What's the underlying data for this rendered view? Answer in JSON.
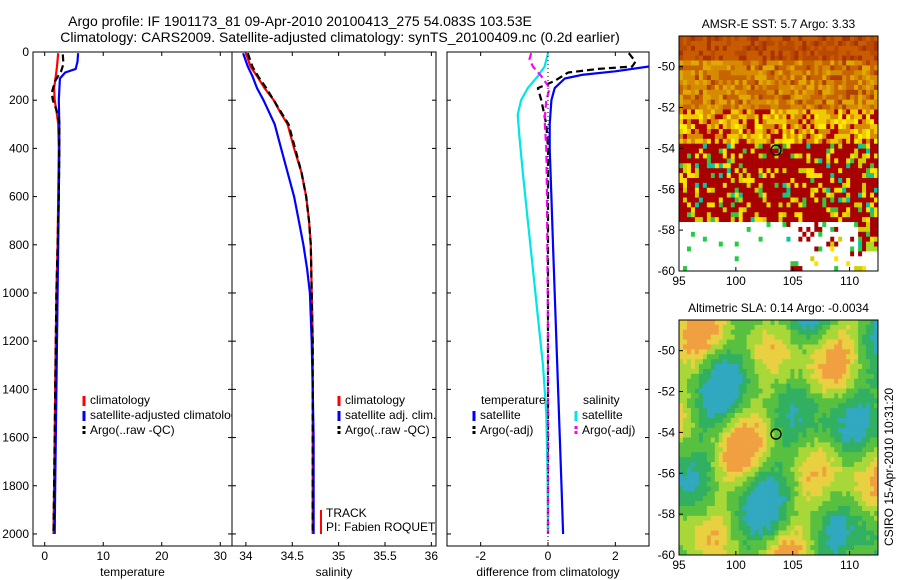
{
  "title_line1": "Argo profile: IF 1901173_81 09-Apr-2010 20100413_275 54.083S 103.53E",
  "title_line2": "Climatology: CARS2009. Satellite-adjusted climatology: synTS_20100409.nc (0.2d earlier)",
  "stamp": "CSIRO 15-Apr-2010 10:31:20",
  "colors": {
    "red": "#ff0000",
    "blue": "#0000ff",
    "black": "#000000",
    "cyan": "#00e5e5",
    "magenta": "#ff00ff"
  },
  "chart_data": [
    {
      "type": "line",
      "id": "temperature",
      "xlabel": "temperature",
      "xlim": [
        -2,
        32
      ],
      "ylim": [
        2050,
        0
      ],
      "xticks": [
        0,
        10,
        20,
        30
      ],
      "yticks": [
        0,
        200,
        400,
        600,
        800,
        1000,
        1200,
        1400,
        1600,
        1800,
        2000
      ],
      "legend": [
        "climatology",
        "satellite-adjusted climatology",
        "Argo(..raw -QC)"
      ],
      "series": [
        {
          "name": "climatology",
          "color": "red",
          "dash": false,
          "points": [
            [
              2.3,
              5
            ],
            [
              2.1,
              60
            ],
            [
              1.9,
              100
            ],
            [
              1.6,
              150
            ],
            [
              1.7,
              200
            ],
            [
              2.1,
              260
            ],
            [
              2.3,
              300
            ],
            [
              2.4,
              400
            ],
            [
              2.3,
              600
            ],
            [
              2.2,
              800
            ],
            [
              2.0,
              1000
            ],
            [
              1.9,
              1200
            ],
            [
              1.8,
              1400
            ],
            [
              1.7,
              1600
            ],
            [
              1.6,
              1800
            ],
            [
              1.5,
              2000
            ]
          ]
        },
        {
          "name": "satellite-adjusted climatology",
          "color": "blue",
          "dash": false,
          "points": [
            [
              5.7,
              5
            ],
            [
              5.6,
              40
            ],
            [
              5.3,
              70
            ],
            [
              3.5,
              85
            ],
            [
              2.6,
              110
            ],
            [
              2.4,
              200
            ],
            [
              2.5,
              300
            ],
            [
              2.5,
              400
            ],
            [
              2.4,
              600
            ],
            [
              2.3,
              800
            ],
            [
              2.2,
              1000
            ],
            [
              2.1,
              1200
            ],
            [
              2.0,
              1400
            ],
            [
              1.9,
              1600
            ],
            [
              1.8,
              1800
            ],
            [
              1.7,
              2000
            ]
          ]
        },
        {
          "name": "Argo(..raw -QC)",
          "color": "black",
          "dash": true,
          "points": [
            [
              3.1,
              10
            ],
            [
              3.2,
              50
            ],
            [
              2.8,
              80
            ],
            [
              1.8,
              120
            ],
            [
              1.2,
              170
            ],
            [
              1.4,
              200
            ],
            [
              2.0,
              240
            ],
            [
              2.5,
              290
            ],
            [
              2.5,
              400
            ],
            [
              2.4,
              600
            ],
            [
              2.2,
              800
            ],
            [
              2.0,
              1000
            ],
            [
              1.9,
              1200
            ],
            [
              1.8,
              1400
            ],
            [
              1.7,
              1600
            ],
            [
              1.6,
              1800
            ],
            [
              1.5,
              2000
            ]
          ]
        }
      ]
    },
    {
      "type": "line",
      "id": "salinity",
      "xlabel": "salinity",
      "xlim": [
        33.85,
        36.05
      ],
      "ylim": [
        2050,
        0
      ],
      "xticks": [
        34,
        34.5,
        35,
        35.5,
        36
      ],
      "legend": [
        "climatology",
        "satellite adj. clim.",
        "Argo(..raw -QC)"
      ],
      "annotations": [
        "TRACK",
        "PI: Fabien ROQUET"
      ],
      "series": [
        {
          "name": "climatology",
          "color": "red",
          "dash": false,
          "points": [
            [
              34.0,
              5
            ],
            [
              34.05,
              60
            ],
            [
              34.12,
              100
            ],
            [
              34.2,
              150
            ],
            [
              34.3,
              200
            ],
            [
              34.37,
              250
            ],
            [
              34.45,
              300
            ],
            [
              34.52,
              400
            ],
            [
              34.6,
              500
            ],
            [
              34.65,
              600
            ],
            [
              34.68,
              700
            ],
            [
              34.7,
              800
            ],
            [
              34.71,
              1000
            ],
            [
              34.72,
              1200
            ],
            [
              34.72,
              1400
            ],
            [
              34.72,
              1600
            ],
            [
              34.72,
              1800
            ],
            [
              34.72,
              2000
            ]
          ]
        },
        {
          "name": "satellite adj. clim.",
          "color": "blue",
          "dash": false,
          "points": [
            [
              33.97,
              5
            ],
            [
              34.02,
              60
            ],
            [
              34.07,
              100
            ],
            [
              34.12,
              150
            ],
            [
              34.19,
              200
            ],
            [
              34.25,
              250
            ],
            [
              34.31,
              300
            ],
            [
              34.38,
              400
            ],
            [
              34.45,
              500
            ],
            [
              34.52,
              600
            ],
            [
              34.57,
              700
            ],
            [
              34.62,
              800
            ],
            [
              34.66,
              900
            ],
            [
              34.69,
              1000
            ],
            [
              34.71,
              1200
            ],
            [
              34.72,
              1400
            ],
            [
              34.73,
              1600
            ],
            [
              34.73,
              1800
            ],
            [
              34.73,
              2000
            ]
          ]
        },
        {
          "name": "Argo(..raw -QC)",
          "color": "black",
          "dash": true,
          "points": [
            [
              34.02,
              5
            ],
            [
              34.07,
              60
            ],
            [
              34.13,
              100
            ],
            [
              34.22,
              150
            ],
            [
              34.3,
              200
            ],
            [
              34.38,
              250
            ],
            [
              34.46,
              300
            ],
            [
              34.53,
              400
            ],
            [
              34.6,
              500
            ],
            [
              34.65,
              600
            ],
            [
              34.68,
              700
            ],
            [
              34.7,
              800
            ],
            [
              34.71,
              1000
            ],
            [
              34.72,
              1200
            ],
            [
              34.72,
              1400
            ],
            [
              34.72,
              1600
            ],
            [
              34.72,
              1800
            ],
            [
              34.72,
              2000
            ]
          ]
        }
      ]
    },
    {
      "type": "line",
      "id": "difference",
      "xlabel": "difference from climatology",
      "xlim": [
        -3,
        3
      ],
      "ylim": [
        2050,
        0
      ],
      "xticks": [
        -2,
        0,
        2
      ],
      "legend_temperature_title": "temperature",
      "legend_salinity_title": "salinity",
      "legend": [
        "satellite",
        "Argo(-adj)",
        "satellite",
        "Argo(-adj)"
      ],
      "series": [
        {
          "name": "temperature satellite",
          "color": "blue",
          "dash": false,
          "points": [
            [
              3.5,
              5
            ],
            [
              3.4,
              40
            ],
            [
              3.0,
              60
            ],
            [
              2.0,
              80
            ],
            [
              1.0,
              95
            ],
            [
              0.5,
              110
            ],
            [
              0.2,
              150
            ],
            [
              0.1,
              200
            ],
            [
              0.05,
              300
            ],
            [
              0.05,
              400
            ],
            [
              0.1,
              600
            ],
            [
              0.15,
              800
            ],
            [
              0.2,
              1000
            ],
            [
              0.25,
              1200
            ],
            [
              0.3,
              1400
            ],
            [
              0.35,
              1600
            ],
            [
              0.4,
              1800
            ],
            [
              0.45,
              2000
            ]
          ]
        },
        {
          "name": "temperature Argo(-adj)",
          "color": "black",
          "dash": true,
          "points": [
            [
              2.4,
              5
            ],
            [
              2.6,
              40
            ],
            [
              2.5,
              60
            ],
            [
              1.5,
              70
            ],
            [
              0.6,
              85
            ],
            [
              0.2,
              120
            ],
            [
              -0.3,
              150
            ],
            [
              -0.2,
              200
            ],
            [
              -0.05,
              300
            ],
            [
              0.0,
              400
            ],
            [
              0.0,
              600
            ],
            [
              0.0,
              800
            ],
            [
              0.0,
              1000
            ],
            [
              0.0,
              1200
            ],
            [
              0.0,
              1400
            ],
            [
              0.0,
              1600
            ],
            [
              0.0,
              1800
            ],
            [
              0.0,
              2000
            ]
          ]
        },
        {
          "name": "salinity satellite",
          "color": "cyan",
          "dash": false,
          "points": [
            [
              0.0,
              5
            ],
            [
              -0.1,
              60
            ],
            [
              -0.3,
              100
            ],
            [
              -0.6,
              150
            ],
            [
              -0.8,
              200
            ],
            [
              -0.9,
              260
            ],
            [
              -0.85,
              350
            ],
            [
              -0.75,
              500
            ],
            [
              -0.6,
              700
            ],
            [
              -0.45,
              900
            ],
            [
              -0.3,
              1100
            ],
            [
              -0.15,
              1300
            ],
            [
              -0.05,
              1500
            ],
            [
              -0.02,
              1700
            ],
            [
              0.0,
              1900
            ],
            [
              0.0,
              2000
            ]
          ]
        },
        {
          "name": "salinity Argo(-adj)",
          "color": "magenta",
          "dash": true,
          "points": [
            [
              -0.5,
              5
            ],
            [
              -0.55,
              30
            ],
            [
              -0.45,
              60
            ],
            [
              -0.2,
              100
            ],
            [
              0.05,
              150
            ],
            [
              -0.05,
              200
            ],
            [
              -0.1,
              280
            ],
            [
              -0.05,
              400
            ],
            [
              -0.03,
              600
            ],
            [
              -0.02,
              800
            ],
            [
              -0.01,
              1000
            ],
            [
              0.0,
              1200
            ],
            [
              0.0,
              1400
            ],
            [
              0.0,
              1600
            ],
            [
              0.0,
              1800
            ],
            [
              0.0,
              2000
            ]
          ]
        }
      ]
    },
    {
      "type": "heatmap",
      "id": "sst_map",
      "title": "AMSR-E SST: 5.7 Argo: 3.33",
      "xlim": [
        95,
        112.5
      ],
      "ylim": [
        -60,
        -48.5
      ],
      "xticks": [
        95,
        100,
        105,
        110
      ],
      "yticks": [
        -50,
        -52,
        -54,
        -56,
        -58,
        -60
      ],
      "marker": {
        "lon": 103.53,
        "lat": -54.083
      }
    },
    {
      "type": "heatmap",
      "id": "sla_map",
      "title": "Altimetric SLA: 0.14 Argo: -0.0034",
      "xlim": [
        95,
        112.5
      ],
      "ylim": [
        -60,
        -48.5
      ],
      "xticks": [
        95,
        100,
        105,
        110
      ],
      "yticks": [
        -50,
        -52,
        -54,
        -56,
        -58,
        -60
      ],
      "marker": {
        "lon": 103.53,
        "lat": -54.083
      }
    }
  ]
}
